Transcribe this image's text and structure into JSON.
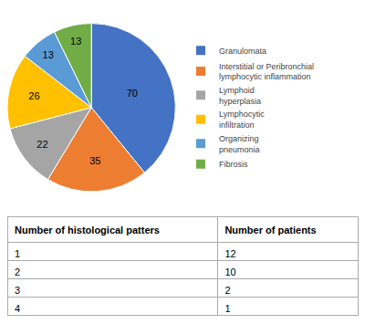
{
  "chart_data": [
    {
      "type": "pie",
      "categories": [
        "Granulomata",
        "Interstitial or Peribronchial\nlymphocytic inflammation",
        "Lymphoid\nhyperplasia",
        "Lymphocytic\ninfiltration",
        "Organizing\npneumonia",
        "Fibrosis"
      ],
      "values": [
        70,
        35,
        22,
        26,
        13,
        13
      ],
      "colors": [
        "#4472C4",
        "#ED7D31",
        "#A5A5A5",
        "#FFC000",
        "#5B9BD5",
        "#70AD47"
      ],
      "data_labels": true,
      "legend": "right"
    },
    {
      "type": "table",
      "columns": [
        "Number of histological patters",
        "Number of patients"
      ],
      "rows": [
        [
          "1",
          "12"
        ],
        [
          "2",
          "10"
        ],
        [
          "3",
          "2"
        ],
        [
          "4",
          "1"
        ]
      ]
    }
  ]
}
